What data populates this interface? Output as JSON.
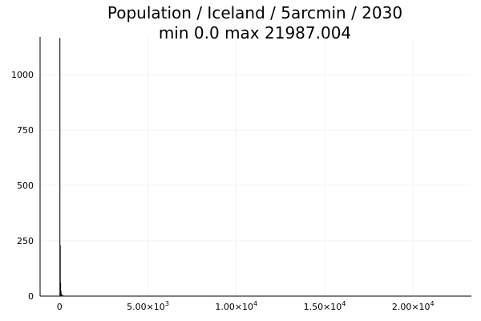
{
  "chart_data": {
    "type": "bar",
    "title": "Population / Iceland / 5arcmin / 2030",
    "subtitle": "min 0.0  max 21987.004",
    "xlabel": "",
    "ylabel": "",
    "xlim": [
      -1100,
      23300
    ],
    "ylim": [
      0,
      1170
    ],
    "grid": true,
    "legend": "none",
    "x_ticks": [
      {
        "value": 0,
        "label": "0",
        "exp": ""
      },
      {
        "value": 5000,
        "label": "5.00×10",
        "exp": "3"
      },
      {
        "value": 10000,
        "label": "1.00×10",
        "exp": "4"
      },
      {
        "value": 15000,
        "label": "1.50×10",
        "exp": "4"
      },
      {
        "value": 20000,
        "label": "2.00×10",
        "exp": "4"
      }
    ],
    "y_ticks": [
      {
        "value": 0,
        "label": "0"
      },
      {
        "value": 250,
        "label": "250"
      },
      {
        "value": 500,
        "label": "500"
      },
      {
        "value": 750,
        "label": "750"
      },
      {
        "value": 1000,
        "label": "1000"
      }
    ],
    "bin_width": 20,
    "bins": [
      {
        "x": 0,
        "count": 1165
      },
      {
        "x": 20,
        "count": 230
      },
      {
        "x": 40,
        "count": 60
      },
      {
        "x": 60,
        "count": 25
      },
      {
        "x": 80,
        "count": 12
      },
      {
        "x": 100,
        "count": 8
      },
      {
        "x": 120,
        "count": 6
      },
      {
        "x": 140,
        "count": 4
      },
      {
        "x": 160,
        "count": 3
      },
      {
        "x": 200,
        "count": 2
      },
      {
        "x": 300,
        "count": 2
      },
      {
        "x": 500,
        "count": 1
      },
      {
        "x": 1000,
        "count": 1
      },
      {
        "x": 2000,
        "count": 1
      },
      {
        "x": 4000,
        "count": 1
      },
      {
        "x": 6000,
        "count": 1
      },
      {
        "x": 21980,
        "count": 1
      }
    ],
    "colors": {
      "bars": "#000000",
      "grid": "#ececec",
      "axis": "#000000"
    }
  }
}
